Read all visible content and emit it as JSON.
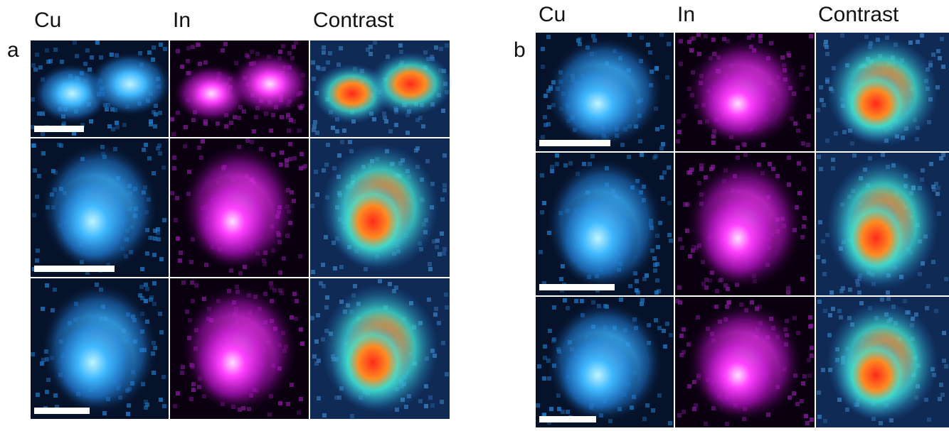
{
  "panels": [
    {
      "label": "a",
      "columns": [
        "Cu",
        "In",
        "Contrast"
      ]
    },
    {
      "label": "b",
      "columns": [
        "Cu",
        "In",
        "Contrast"
      ]
    }
  ]
}
